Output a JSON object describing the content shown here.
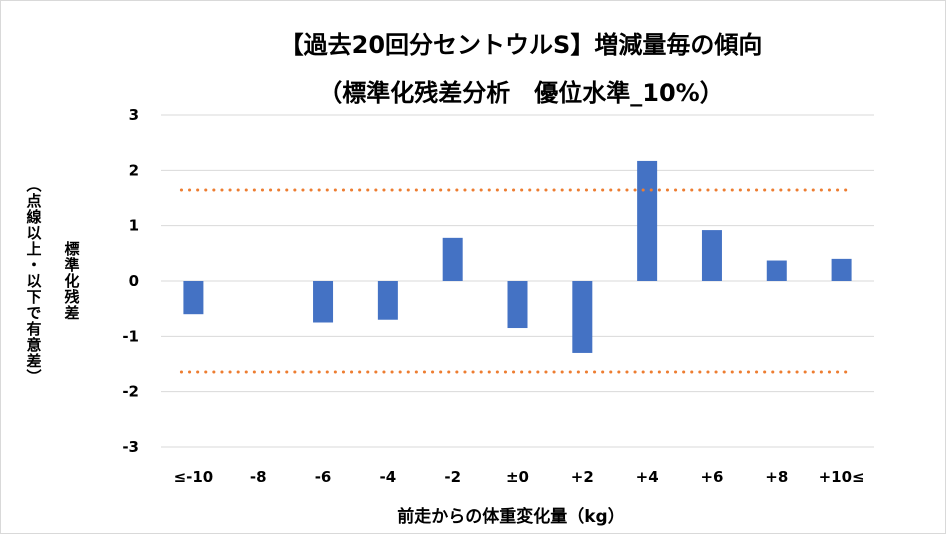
{
  "chart_data": {
    "type": "bar",
    "title": "【過去20回分セントウルS】増減量毎の傾向",
    "subtitle": "（標準化残差分析　優位水準_10%）",
    "xlabel": "前走からの体重変化量（kg）",
    "ylabel_main": "標準化残差",
    "ylabel_sub": "（点線以上・以下で有意差）",
    "categories": [
      "≤-10",
      "-8",
      "-6",
      "-4",
      "-2",
      "±0",
      "+2",
      "+4",
      "+6",
      "+8",
      "+10≤"
    ],
    "values": [
      -0.6,
      0,
      -0.75,
      -0.7,
      0.78,
      -0.85,
      -1.3,
      2.17,
      0.92,
      0.37,
      0.4
    ],
    "ylim": [
      -3,
      3
    ],
    "yticks": [
      3,
      2,
      1,
      0,
      -1,
      -2,
      -3
    ],
    "thresholds": [
      1.645,
      -1.645
    ],
    "grid": true,
    "legend": "none",
    "colors": {
      "bar": "#4472C4",
      "threshold": "#ED7D31",
      "grid": "#D9D9D9"
    }
  }
}
